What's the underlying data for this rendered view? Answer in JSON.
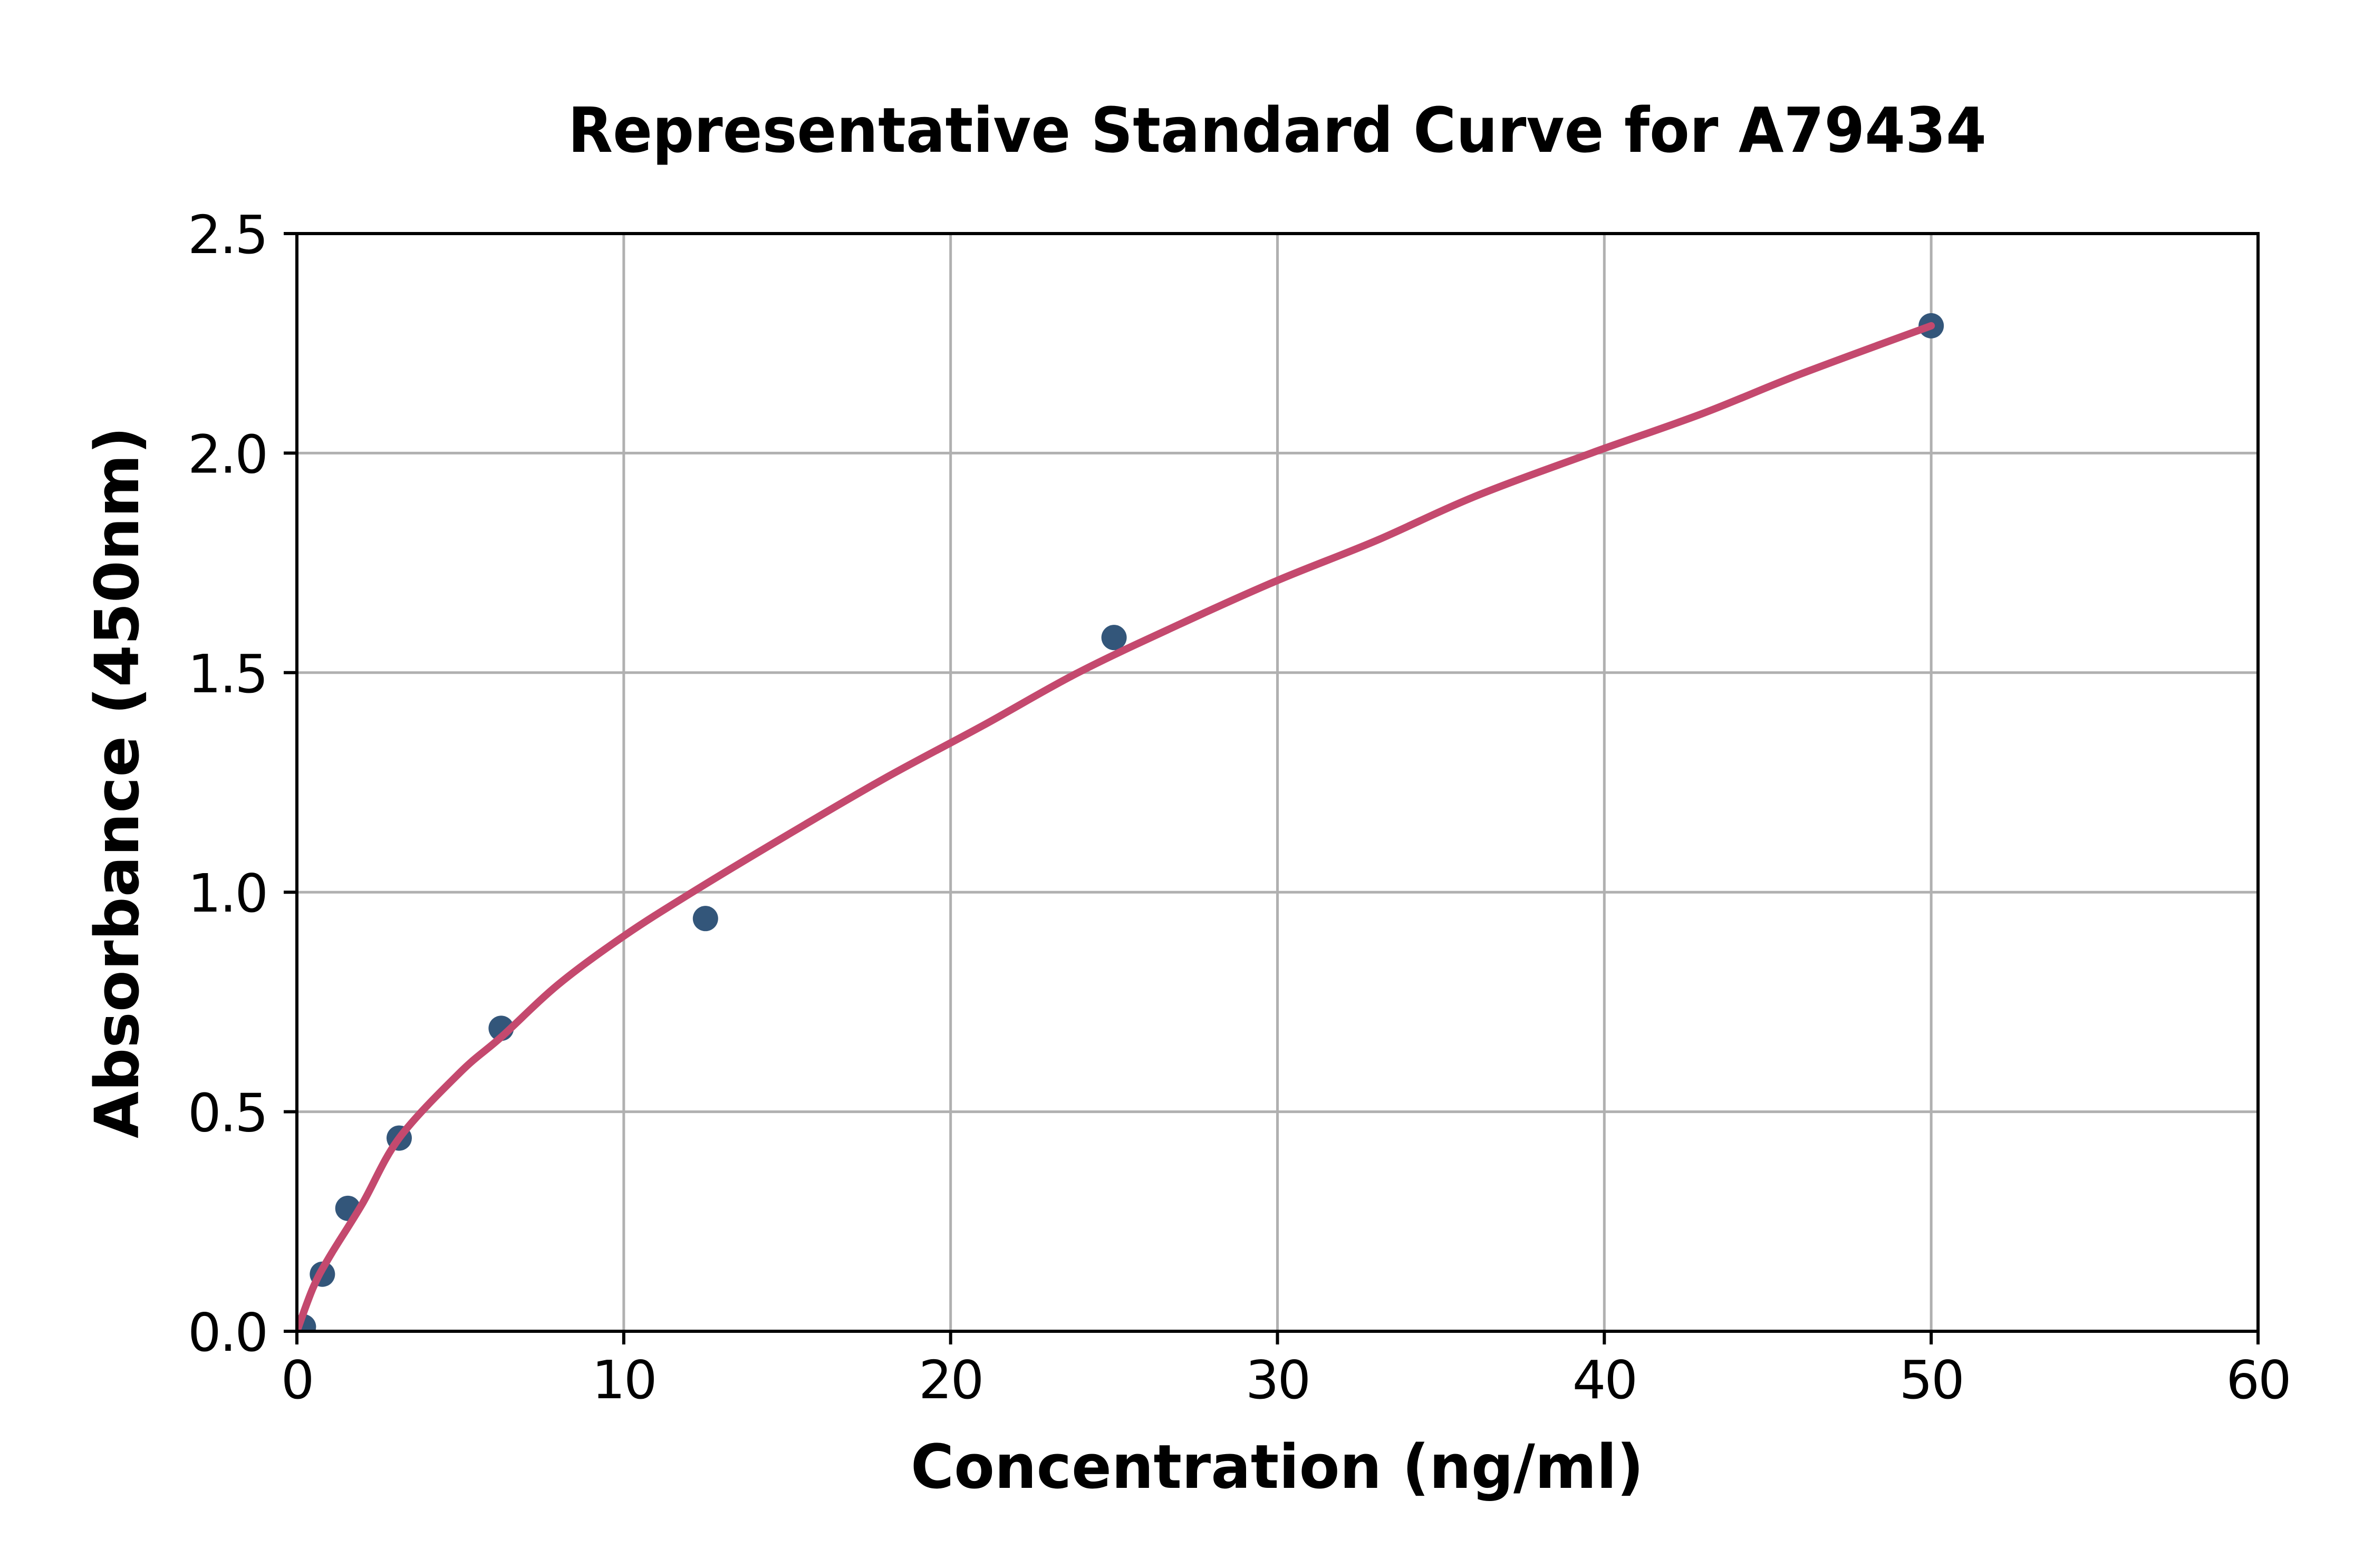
{
  "figure": {
    "background": "#ffffff"
  },
  "colors": {
    "curve": "#c4496e",
    "marker": "#33567a",
    "grid": "#b0b0b0",
    "axis": "#000000",
    "text": "#000000",
    "background": "#ffffff"
  },
  "chart_data": {
    "type": "scatter",
    "title": "Representative Standard Curve for A79434",
    "xlabel": "Concentration (ng/ml)",
    "ylabel": "Absorbance (450nm)",
    "xlim": [
      0,
      60
    ],
    "ylim": [
      0,
      2.5
    ],
    "x_ticks": [
      "0",
      "10",
      "20",
      "30",
      "40",
      "50",
      "60"
    ],
    "y_ticks": [
      "0.0",
      "0.5",
      "1.0",
      "1.5",
      "2.0",
      "2.5"
    ],
    "grid": true,
    "legend": false,
    "series": [
      {
        "name": "standard-points",
        "type": "scatter",
        "points": [
          [
            0.2,
            0.01
          ],
          [
            0.78,
            0.13
          ],
          [
            1.56,
            0.28
          ],
          [
            3.13,
            0.44
          ],
          [
            6.25,
            0.69
          ],
          [
            12.5,
            0.94
          ],
          [
            25,
            1.58
          ],
          [
            50,
            2.29
          ]
        ]
      },
      {
        "name": "fitted-curve",
        "type": "line",
        "points": [
          [
            0,
            0
          ],
          [
            0.5,
            0.1
          ],
          [
            1,
            0.17
          ],
          [
            2,
            0.29
          ],
          [
            3.13,
            0.44
          ],
          [
            5,
            0.59
          ],
          [
            6.25,
            0.67
          ],
          [
            8,
            0.79
          ],
          [
            10,
            0.9
          ],
          [
            12.1,
            1.0
          ],
          [
            15,
            1.13
          ],
          [
            18,
            1.26
          ],
          [
            21,
            1.38
          ],
          [
            23.9,
            1.5
          ],
          [
            27,
            1.61
          ],
          [
            30,
            1.71
          ],
          [
            33,
            1.8
          ],
          [
            36,
            1.9
          ],
          [
            39.6,
            2.0
          ],
          [
            43,
            2.09
          ],
          [
            46,
            2.18
          ],
          [
            50,
            2.29
          ]
        ]
      }
    ]
  }
}
